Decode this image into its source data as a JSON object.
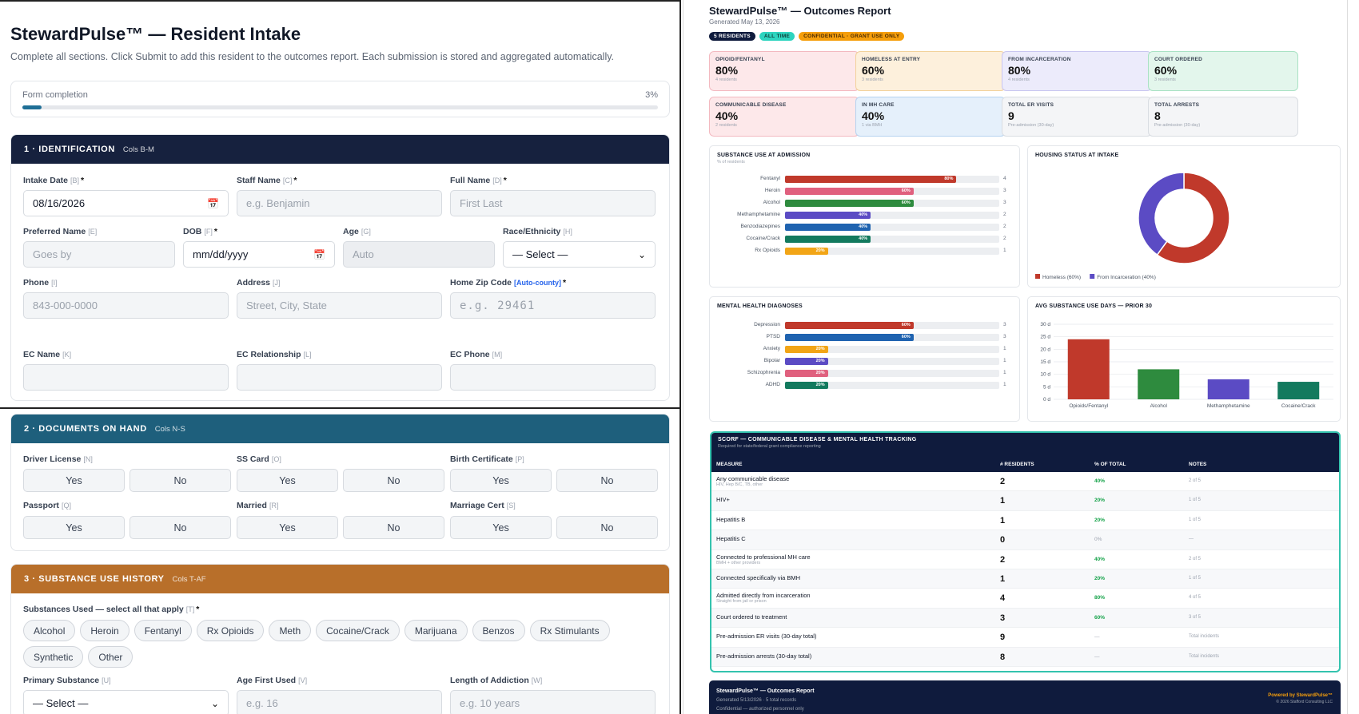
{
  "intake": {
    "title": "StewardPulse™ — Resident Intake",
    "subtitle": "Complete all sections. Click Submit to add this resident to the outcomes report. Each submission is stored and aggregated automatically.",
    "progress": {
      "label": "Form completion",
      "value": "3%",
      "fraction": 0.03
    },
    "sections": {
      "s1": {
        "title": "1 · IDENTIFICATION",
        "cols": "Cols B-M",
        "color": "#16213e"
      },
      "s2": {
        "title": "2 · DOCUMENTS ON HAND",
        "cols": "Cols N-S",
        "color": "#1e5f7c"
      },
      "s3": {
        "title": "3 · SUBSTANCE USE HISTORY",
        "cols": "Cols T-AF",
        "color": "#b86f2a"
      }
    },
    "fields": {
      "intake_date": {
        "label": "Intake Date",
        "tag": "[B]",
        "value": "08/16/2026"
      },
      "staff_name": {
        "label": "Staff Name",
        "tag": "[C]",
        "placeholder": "e.g. Benjamin"
      },
      "full_name": {
        "label": "Full Name",
        "tag": "[D]",
        "placeholder": "First Last"
      },
      "preferred_name": {
        "label": "Preferred Name",
        "tag": "[E]",
        "placeholder": "Goes by"
      },
      "dob": {
        "label": "DOB",
        "tag": "[F]",
        "placeholder": "mm/dd/yyyy"
      },
      "age": {
        "label": "Age",
        "tag": "[G]",
        "placeholder": "Auto"
      },
      "race": {
        "label": "Race/Ethnicity",
        "tag": "[H]",
        "value": "— Select —"
      },
      "phone": {
        "label": "Phone",
        "tag": "[I]",
        "placeholder": "843-000-0000"
      },
      "address": {
        "label": "Address",
        "tag": "[J]",
        "placeholder": "Street, City, State"
      },
      "zip": {
        "label": "Home Zip Code",
        "tag": "[Auto-county]",
        "placeholder": "e.g. 29461"
      },
      "ec_name": {
        "label": "EC Name",
        "tag": "[K]"
      },
      "ec_rel": {
        "label": "EC Relationship",
        "tag": "[L]"
      },
      "ec_phone": {
        "label": "EC Phone",
        "tag": "[M]"
      },
      "driver_license": {
        "label": "Driver License",
        "tag": "[N]"
      },
      "ss_card": {
        "label": "SS Card",
        "tag": "[O]"
      },
      "birth_cert": {
        "label": "Birth Certificate",
        "tag": "[P]"
      },
      "passport": {
        "label": "Passport",
        "tag": "[Q]"
      },
      "married": {
        "label": "Married",
        "tag": "[R]"
      },
      "marriage_cert": {
        "label": "Marriage Cert",
        "tag": "[S]"
      },
      "substances": {
        "label": "Substances Used — select all that apply",
        "tag": "[T]"
      },
      "primary": {
        "label": "Primary Substance",
        "tag": "[U]",
        "value": "— Select —"
      },
      "age_first": {
        "label": "Age First Used",
        "tag": "[V]",
        "placeholder": "e.g. 16"
      },
      "length": {
        "label": "Length of Addiction",
        "tag": "[W]",
        "placeholder": "e.g. 10 years"
      }
    },
    "yes": "Yes",
    "no": "No",
    "required_mark": "*",
    "chips": [
      "Alcohol",
      "Heroin",
      "Fentanyl",
      "Rx Opioids",
      "Meth",
      "Cocaine/Crack",
      "Marijuana",
      "Benzos",
      "Rx Stimulants",
      "Synthetic",
      "Other"
    ]
  },
  "report": {
    "title": "StewardPulse™ — Outcomes Report",
    "generated": "Generated May 13, 2026",
    "badges": [
      {
        "text": "5 RESIDENTS",
        "bg": "#0f1b3d",
        "fg": "#ffffff"
      },
      {
        "text": "ALL TIME",
        "bg": "#2dd4bf",
        "fg": "#0f3d38"
      },
      {
        "text": "CONFIDENTIAL · GRANT USE ONLY",
        "bg": "#f59e0b",
        "fg": "#4a2a00"
      }
    ],
    "kpis": [
      {
        "label": "OPIOID/FENTANYL",
        "value": "80%",
        "sub": "4 residents",
        "bg": "#fde8ea",
        "border": "#f3b9c0"
      },
      {
        "label": "HOMELESS AT ENTRY",
        "value": "60%",
        "sub": "3 residents",
        "bg": "#fdf0dc",
        "border": "#f2d29b"
      },
      {
        "label": "FROM INCARCERATION",
        "value": "80%",
        "sub": "4 residents",
        "bg": "#ecebfb",
        "border": "#c9c6f0"
      },
      {
        "label": "COURT ORDERED",
        "value": "60%",
        "sub": "3 residents",
        "bg": "#e3f6ec",
        "border": "#a9e2c4"
      },
      {
        "label": "COMMUNICABLE DISEASE",
        "value": "40%",
        "sub": "2 residents",
        "bg": "#fde8ea",
        "border": "#f3b9c0"
      },
      {
        "label": "IN MH CARE",
        "value": "40%",
        "sub": "1 via BMH",
        "bg": "#e5f0fb",
        "border": "#b6d3f0"
      },
      {
        "label": "TOTAL ER VISITS",
        "value": "9",
        "sub": "Pre-admission (30-day)",
        "bg": "#f4f5f7",
        "border": "#d9dde2"
      },
      {
        "label": "TOTAL ARRESTS",
        "value": "8",
        "sub": "Pre-admission (30-day)",
        "bg": "#f4f5f7",
        "border": "#d9dde2"
      }
    ],
    "substance_card": {
      "title": "SUBSTANCE USE AT ADMISSION",
      "sub": "% of residents"
    },
    "housing_card": {
      "title": "HOUSING STATUS AT INTAKE"
    },
    "mh_card": {
      "title": "MENTAL HEALTH DIAGNOSES"
    },
    "days_card": {
      "title": "AVG SUBSTANCE USE DAYS — PRIOR 30"
    },
    "scorf": {
      "title": "SCORF — COMMUNICABLE DISEASE & MENTAL HEALTH TRACKING",
      "subtitle": "Required for state/federal grant compliance reporting",
      "headers": [
        "MEASURE",
        "# RESIDENTS",
        "% OF TOTAL",
        "NOTES"
      ],
      "rows": [
        {
          "measure": "Any communicable disease",
          "sub": "HIV, Hep B/C, TB, other",
          "n": "2",
          "pct": "40%",
          "notes": "2 of 5"
        },
        {
          "measure": "HIV+",
          "sub": "",
          "n": "1",
          "pct": "20%",
          "notes": "1 of 5"
        },
        {
          "measure": "Hepatitis B",
          "sub": "",
          "n": "1",
          "pct": "20%",
          "notes": "1 of 5"
        },
        {
          "measure": "Hepatitis C",
          "sub": "",
          "n": "0",
          "pct": "0%",
          "notes": "—"
        },
        {
          "measure": "Connected to professional MH care",
          "sub": "BMH + other providers",
          "n": "2",
          "pct": "40%",
          "notes": "2 of 5"
        },
        {
          "measure": "Connected specifically via BMH",
          "sub": "",
          "n": "1",
          "pct": "20%",
          "notes": "1 of 5"
        },
        {
          "measure": "Admitted directly from incarceration",
          "sub": "Straight from jail or prison",
          "n": "4",
          "pct": "80%",
          "notes": "4 of 5"
        },
        {
          "measure": "Court ordered to treatment",
          "sub": "",
          "n": "3",
          "pct": "60%",
          "notes": "3 of 5"
        },
        {
          "measure": "Pre-admission ER visits (30-day total)",
          "sub": "",
          "n": "9",
          "pct": "—",
          "notes": "Total incidents"
        },
        {
          "measure": "Pre-admission arrests (30-day total)",
          "sub": "",
          "n": "8",
          "pct": "—",
          "notes": "Total incidents"
        }
      ]
    },
    "footer": {
      "title": "StewardPulse™ — Outcomes Report",
      "line2": "Generated 5/13/2026 · 5 total records",
      "line3": "Confidential — authorized personnel only",
      "powered": "Powered by StewardPulse™",
      "copyright": "© 2026 Stafford Consulting LLC"
    }
  },
  "chart_data": [
    {
      "type": "bar",
      "orientation": "horizontal",
      "title": "SUBSTANCE USE AT ADMISSION",
      "subtitle": "% of residents",
      "categories": [
        "Fentanyl",
        "Heroin",
        "Alcohol",
        "Methamphetamine",
        "Benzodiazepines",
        "Cocaine/Crack",
        "Rx Opioids"
      ],
      "values": [
        80,
        60,
        60,
        40,
        40,
        40,
        20
      ],
      "counts": [
        "4",
        "3",
        "3",
        "2",
        "2",
        "2",
        "1"
      ],
      "colors": [
        "#c0392b",
        "#e0607e",
        "#2e8b3e",
        "#5b4bc4",
        "#1f63b0",
        "#137a5e",
        "#f2a516"
      ],
      "xlim": [
        0,
        100
      ]
    },
    {
      "type": "pie",
      "title": "HOUSING STATUS AT INTAKE",
      "donut": true,
      "labels": [
        "Homeless (60%)",
        "From Incarceration (40%)"
      ],
      "values": [
        60,
        40
      ],
      "colors": [
        "#c0392b",
        "#5b4bc4"
      ],
      "legend": "bottom-left"
    },
    {
      "type": "bar",
      "orientation": "horizontal",
      "title": "MENTAL HEALTH DIAGNOSES",
      "categories": [
        "Depression",
        "PTSD",
        "Anxiety",
        "Bipolar",
        "Schizophrenia",
        "ADHD"
      ],
      "values": [
        60,
        60,
        20,
        20,
        20,
        20
      ],
      "counts": [
        "3",
        "3",
        "1",
        "1",
        "1",
        "1"
      ],
      "colors": [
        "#c0392b",
        "#1f63b0",
        "#f2a516",
        "#5b4bc4",
        "#e0607e",
        "#137a5e"
      ],
      "xlim": [
        0,
        100
      ]
    },
    {
      "type": "bar",
      "title": "AVG SUBSTANCE USE DAYS — PRIOR 30",
      "categories": [
        "Opioids/Fentanyl",
        "Alcohol",
        "Methamphetamine",
        "Cocaine/Crack"
      ],
      "values": [
        24,
        12,
        8,
        7
      ],
      "colors": [
        "#c0392b",
        "#2e8b3e",
        "#5b4bc4",
        "#137a5e"
      ],
      "ylim": [
        0,
        30
      ],
      "yticks": [
        "0 d",
        "5 d",
        "10 d",
        "15 d",
        "20 d",
        "25 d",
        "30 d"
      ],
      "grid": true
    }
  ]
}
